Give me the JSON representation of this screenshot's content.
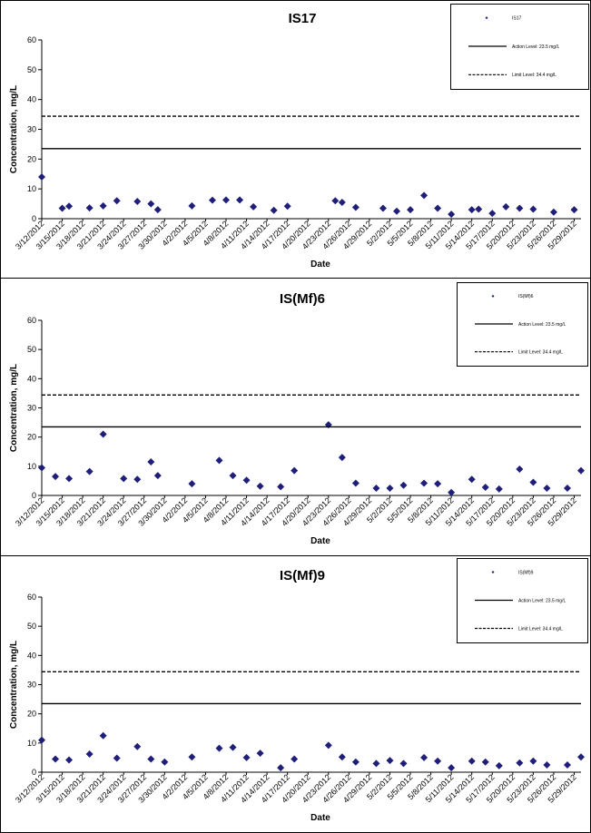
{
  "chart_data": [
    {
      "type": "scatter",
      "title": "IS17",
      "xlabel": "Date",
      "ylabel": "Concentration, mg/L",
      "ylim": [
        0,
        60
      ],
      "yticks": [
        0,
        10,
        20,
        30,
        40,
        50,
        60
      ],
      "xlim": [
        "3/12/2012",
        "5/30/2012"
      ],
      "xticks": [
        "3/12/2012",
        "3/15/2012",
        "3/18/2012",
        "3/21/2012",
        "3/24/2012",
        "3/27/2012",
        "3/30/2012",
        "4/2/2012",
        "4/5/2012",
        "4/8/2012",
        "4/11/2012",
        "4/14/2012",
        "4/17/2012",
        "4/20/2012",
        "4/23/2012",
        "4/26/2012",
        "4/29/2012",
        "5/2/2012",
        "5/5/2012",
        "5/8/2012",
        "5/11/2012",
        "5/14/2012",
        "5/17/2012",
        "5/20/2012",
        "5/23/2012",
        "5/26/2012",
        "5/29/2012"
      ],
      "grid": false,
      "legend_position": "top-right",
      "point_color": "#1f1f7a",
      "series": [
        {
          "name": "IS17",
          "x": [
            "3/12/2012",
            "3/15/2012",
            "3/16/2012",
            "3/19/2012",
            "3/21/2012",
            "3/23/2012",
            "3/26/2012",
            "3/28/2012",
            "3/29/2012",
            "4/3/2012",
            "4/6/2012",
            "4/8/2012",
            "4/10/2012",
            "4/12/2012",
            "4/15/2012",
            "4/17/2012",
            "4/24/2012",
            "4/25/2012",
            "4/27/2012",
            "5/1/2012",
            "5/3/2012",
            "5/5/2012",
            "5/7/2012",
            "5/9/2012",
            "5/11/2012",
            "5/14/2012",
            "5/15/2012",
            "5/17/2012",
            "5/19/2012",
            "5/21/2012",
            "5/23/2012",
            "5/26/2012",
            "5/29/2012"
          ],
          "y": [
            14,
            3.5,
            4.2,
            3.6,
            4.3,
            6,
            5.8,
            5,
            3,
            4.3,
            6.2,
            6.3,
            6.3,
            4,
            2.8,
            4.2,
            6,
            5.5,
            3.8,
            3.5,
            2.5,
            3,
            7.8,
            3.5,
            1.5,
            3,
            3.2,
            1.8,
            4,
            3.5,
            3.2,
            2.2,
            3
          ]
        },
        {
          "name": "Action Level: 23.5 mg/L",
          "type": "hline",
          "y": 23.5,
          "style": "solid"
        },
        {
          "name": "Limit Level: 34.4 mg/L",
          "type": "hline",
          "y": 34.4,
          "style": "dashed"
        }
      ]
    },
    {
      "type": "scatter",
      "title": "IS(Mf)6",
      "xlabel": "Date",
      "ylabel": "Concentration, mg/L",
      "ylim": [
        0,
        60
      ],
      "yticks": [
        0,
        10,
        20,
        30,
        40,
        50,
        60
      ],
      "xlim": [
        "3/12/2012",
        "5/30/2012"
      ],
      "xticks": [
        "3/12/2012",
        "3/15/2012",
        "3/18/2012",
        "3/21/2012",
        "3/24/2012",
        "3/27/2012",
        "3/30/2012",
        "4/2/2012",
        "4/5/2012",
        "4/8/2012",
        "4/11/2012",
        "4/14/2012",
        "4/17/2012",
        "4/20/2012",
        "4/23/2012",
        "4/26/2012",
        "4/29/2012",
        "5/2/2012",
        "5/5/2012",
        "5/8/2012",
        "5/11/2012",
        "5/14/2012",
        "5/17/2012",
        "5/20/2012",
        "5/23/2012",
        "5/26/2012",
        "5/29/2012"
      ],
      "grid": false,
      "legend_position": "top-right",
      "point_color": "#1f1f7a",
      "series": [
        {
          "name": "IS(Mf)6",
          "x": [
            "3/12/2012",
            "3/14/2012",
            "3/16/2012",
            "3/19/2012",
            "3/21/2012",
            "3/24/2012",
            "3/26/2012",
            "3/28/2012",
            "3/29/2012",
            "4/3/2012",
            "4/7/2012",
            "4/9/2012",
            "4/11/2012",
            "4/13/2012",
            "4/16/2012",
            "4/18/2012",
            "4/23/2012",
            "4/25/2012",
            "4/27/2012",
            "4/30/2012",
            "5/2/2012",
            "5/4/2012",
            "5/7/2012",
            "5/9/2012",
            "5/11/2012",
            "5/14/2012",
            "5/16/2012",
            "5/18/2012",
            "5/21/2012",
            "5/23/2012",
            "5/25/2012",
            "5/28/2012",
            "5/30/2012"
          ],
          "y": [
            9.5,
            6.5,
            5.8,
            8.2,
            21,
            5.8,
            5.5,
            11.5,
            6.8,
            4,
            12,
            6.8,
            5.2,
            3.2,
            3,
            8.5,
            24.2,
            13,
            4.2,
            2.5,
            2.5,
            3.5,
            4.2,
            4,
            1,
            5.5,
            2.8,
            2.2,
            9,
            4.5,
            2.5,
            2.5,
            8.5
          ]
        },
        {
          "name": "Action Level: 23.5 mg/L",
          "type": "hline",
          "y": 23.5,
          "style": "solid"
        },
        {
          "name": "Limit Level: 34.4 mg/L",
          "type": "hline",
          "y": 34.4,
          "style": "dashed"
        }
      ]
    },
    {
      "type": "scatter",
      "title": "IS(Mf)9",
      "xlabel": "Date",
      "ylabel": "Concentration, mg/L",
      "ylim": [
        0,
        60
      ],
      "yticks": [
        0,
        10,
        20,
        30,
        40,
        50,
        60
      ],
      "xlim": [
        "3/12/2012",
        "5/30/2012"
      ],
      "xticks": [
        "3/12/2012",
        "3/15/2012",
        "3/18/2012",
        "3/21/2012",
        "3/24/2012",
        "3/27/2012",
        "3/30/2012",
        "4/2/2012",
        "4/5/2012",
        "4/8/2012",
        "4/11/2012",
        "4/14/2012",
        "4/17/2012",
        "4/20/2012",
        "4/23/2012",
        "4/26/2012",
        "4/29/2012",
        "5/2/2012",
        "5/5/2012",
        "5/8/2012",
        "5/11/2012",
        "5/14/2012",
        "5/17/2012",
        "5/20/2012",
        "5/23/2012",
        "5/26/2012",
        "5/29/2012"
      ],
      "grid": false,
      "legend_position": "top-right",
      "point_color": "#1f1f7a",
      "series": [
        {
          "name": "IS(Mf)9",
          "x": [
            "3/12/2012",
            "3/14/2012",
            "3/16/2012",
            "3/19/2012",
            "3/21/2012",
            "3/23/2012",
            "3/26/2012",
            "3/28/2012",
            "3/30/2012",
            "4/3/2012",
            "4/7/2012",
            "4/9/2012",
            "4/11/2012",
            "4/13/2012",
            "4/16/2012",
            "4/18/2012",
            "4/23/2012",
            "4/25/2012",
            "4/27/2012",
            "4/30/2012",
            "5/2/2012",
            "5/4/2012",
            "5/7/2012",
            "5/9/2012",
            "5/11/2012",
            "5/14/2012",
            "5/16/2012",
            "5/18/2012",
            "5/21/2012",
            "5/23/2012",
            "5/25/2012",
            "5/28/2012",
            "5/30/2012"
          ],
          "y": [
            11,
            4.5,
            4.2,
            6.2,
            12.5,
            4.8,
            8.8,
            4.5,
            3.5,
            5.2,
            8.2,
            8.5,
            5,
            6.5,
            1.5,
            4.5,
            9.2,
            5.2,
            3.5,
            3,
            4,
            3,
            5,
            3.8,
            1.5,
            3.8,
            3.5,
            2.2,
            3.2,
            3.8,
            2.5,
            2.5,
            5.2
          ]
        },
        {
          "name": "Action Level: 23.5 mg/L",
          "type": "hline",
          "y": 23.5,
          "style": "solid"
        },
        {
          "name": "Limit Level: 34.4 mg/L",
          "type": "hline",
          "y": 34.4,
          "style": "dashed"
        }
      ]
    }
  ]
}
